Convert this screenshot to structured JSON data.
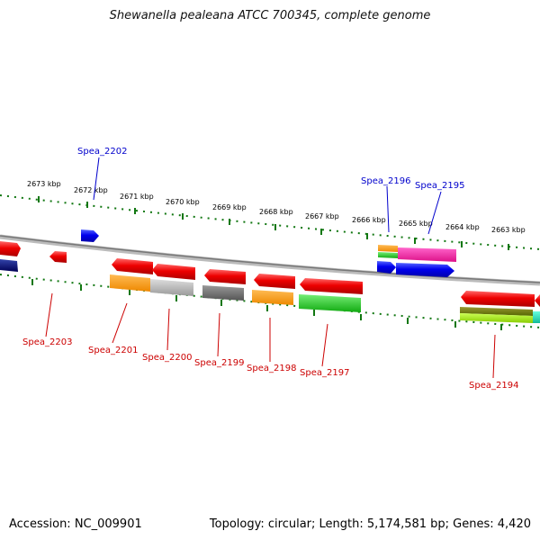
{
  "title": "Shewanella pealeana ATCC 700345, complete genome",
  "footer": {
    "accession": "Accession: NC_009901",
    "stats": "Topology: circular; Length: 5,174,581 bp; Genes: 4,420"
  },
  "colors": {
    "forward_label": "#0000cc",
    "reverse_label": "#cc0000",
    "ruler_tick": "#117711",
    "backbone": "#888888"
  },
  "ruler_labels": [
    {
      "name": "tick-label-2673",
      "text": "2673 kbp"
    },
    {
      "name": "tick-label-2672",
      "text": "2672 kbp"
    },
    {
      "name": "tick-label-2671",
      "text": "2671 kbp"
    },
    {
      "name": "tick-label-2670",
      "text": "2670 kbp"
    },
    {
      "name": "tick-label-2669",
      "text": "2669 kbp"
    },
    {
      "name": "tick-label-2668",
      "text": "2668 kbp"
    },
    {
      "name": "tick-label-2667",
      "text": "2667 kbp"
    },
    {
      "name": "tick-label-2666",
      "text": "2666 kbp"
    },
    {
      "name": "tick-label-2665",
      "text": "2665 kbp"
    },
    {
      "name": "tick-label-2664",
      "text": "2664 kbp"
    },
    {
      "name": "tick-label-2663",
      "text": "2663 kbp"
    }
  ],
  "genes": {
    "forward": [
      "Spea_2202",
      "Spea_2196",
      "Spea_2195"
    ],
    "reverse": [
      "Spea_2203",
      "Spea_2201",
      "Spea_2200",
      "Spea_2199",
      "Spea_2198",
      "Spea_2197",
      "Spea_2194"
    ]
  }
}
